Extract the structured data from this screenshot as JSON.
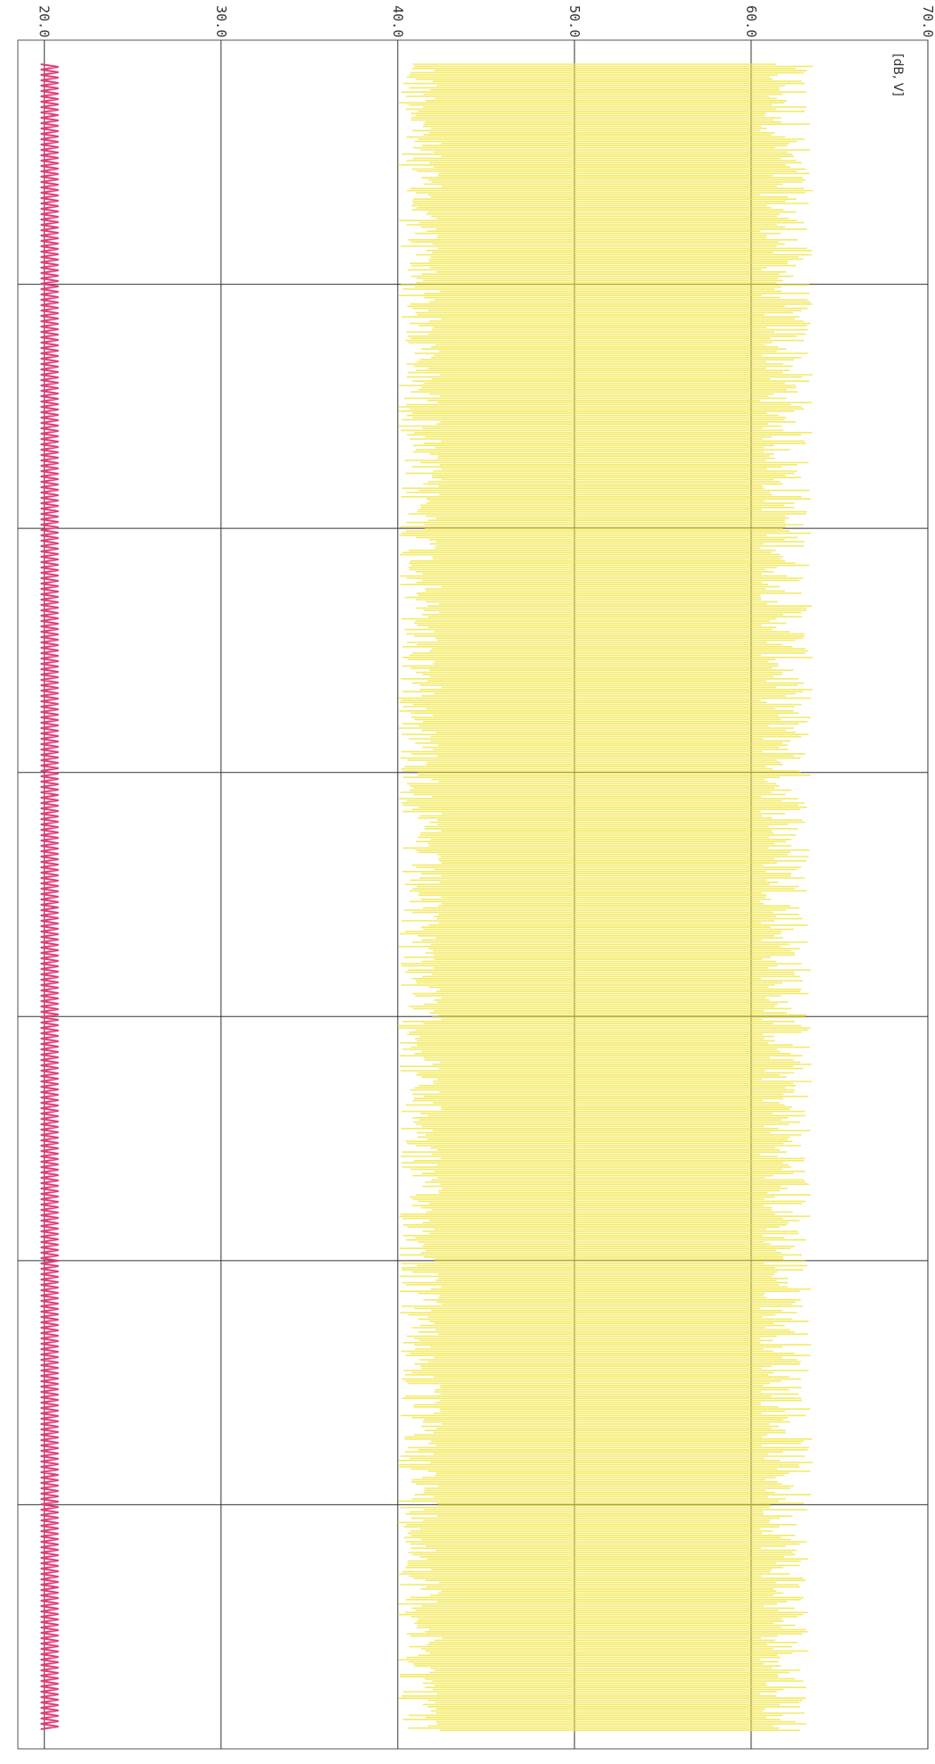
{
  "chart_data": {
    "type": "line",
    "orientation": "rotated-90",
    "y_ticks": [
      "20.0",
      "30.0",
      "40.0",
      "50.0",
      "60.0",
      "70.0"
    ],
    "ylim": [
      18.5,
      70.0
    ],
    "x_divisions": 7,
    "unit_label": "[dB, V]",
    "grid": true,
    "series": [
      {
        "color": "#f2e64a",
        "style": "dense-band",
        "level_range": [
          40.0,
          63.5
        ],
        "core_range": [
          42.5,
          60.5
        ]
      },
      {
        "color": "#e23a78",
        "style": "thin-oscillation",
        "level_range": [
          19.8,
          20.8
        ]
      }
    ]
  }
}
